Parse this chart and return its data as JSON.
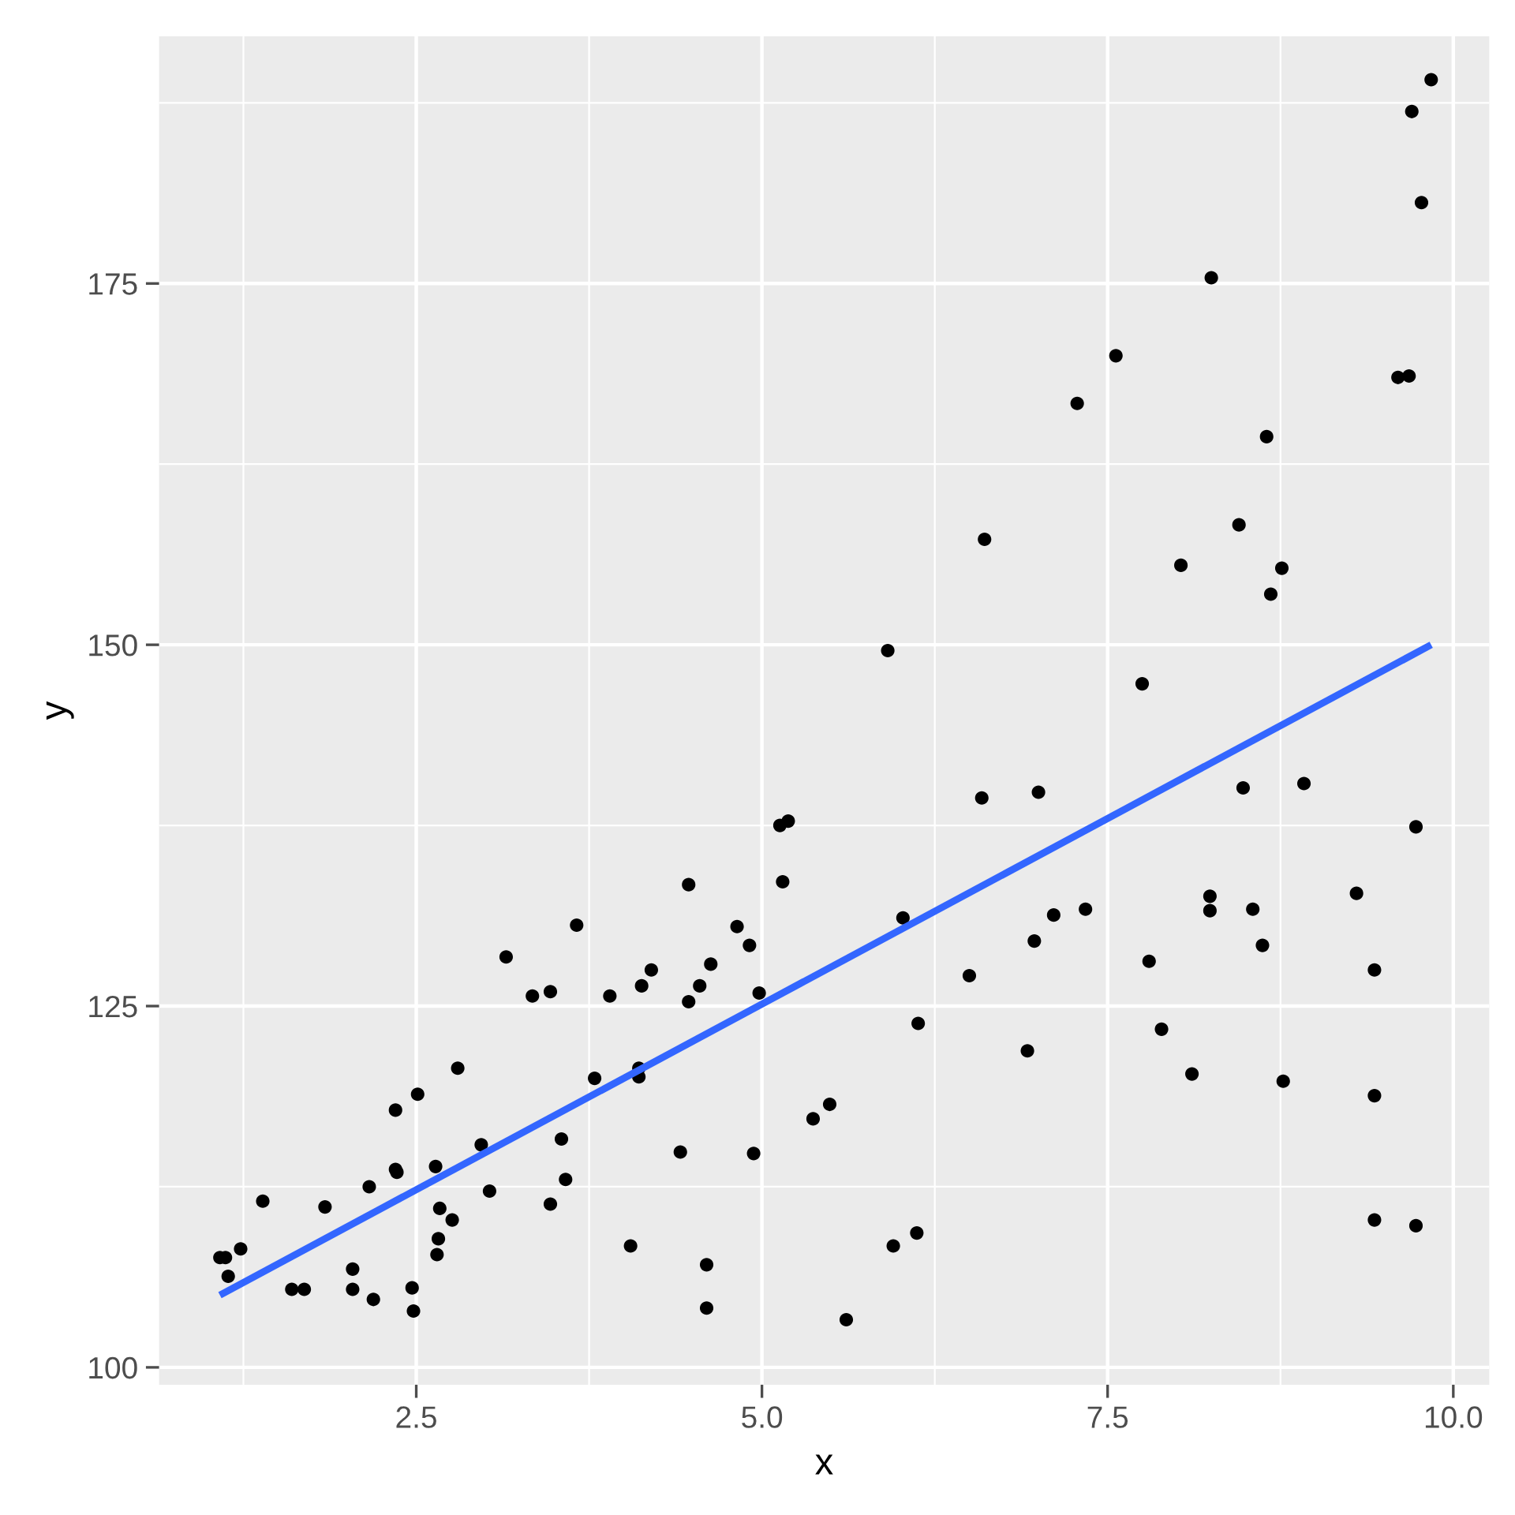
{
  "chart_data": {
    "type": "scatter",
    "xlabel": "x",
    "ylabel": "y",
    "xlim": [
      0.64,
      10.26
    ],
    "ylim": [
      98.8,
      192.1
    ],
    "xticks": [
      2.5,
      {
        "value": 5,
        "label": "5.0"
      },
      7.5,
      {
        "value": 10,
        "label": "10.0"
      }
    ],
    "yticks": [
      100,
      125,
      150,
      175
    ],
    "grid": true,
    "marker": "circle",
    "series": [
      {
        "color": "#000000",
        "x": [
          1.08,
          1.12,
          1.14,
          1.23,
          1.39,
          1.6,
          1.69,
          1.84,
          2.04,
          2.04,
          2.16,
          2.19,
          2.35,
          2.35,
          2.36,
          2.47,
          2.48,
          2.51,
          2.64,
          2.65,
          2.66,
          2.67,
          2.76,
          2.8,
          2.97,
          3.03,
          3.15,
          3.34,
          3.47,
          3.47,
          3.55,
          3.58,
          3.66,
          3.79,
          3.9,
          4.05,
          4.11,
          4.11,
          4.13,
          4.2,
          4.41,
          4.47,
          4.47,
          4.55,
          4.6,
          4.6,
          4.63,
          4.82,
          4.91,
          4.94,
          4.98,
          5.13,
          5.19,
          5.15,
          5.37,
          5.49,
          5.61,
          5.91,
          5.95,
          6.02,
          6.12,
          6.13,
          6.5,
          6.59,
          6.61,
          6.92,
          6.97,
          7.0,
          7.11,
          7.28,
          7.34,
          7.56,
          7.75,
          7.8,
          7.89,
          8.03,
          8.11,
          8.24,
          8.24,
          8.25,
          8.45,
          8.48,
          8.55,
          8.62,
          8.65,
          8.68,
          8.76,
          8.77,
          8.92,
          9.3,
          9.43,
          9.43,
          9.43,
          9.6,
          9.68,
          9.7,
          9.73,
          9.73,
          9.77,
          9.84
        ],
        "values": [
          107.6,
          107.6,
          106.3,
          108.2,
          111.5,
          105.4,
          105.4,
          111.1,
          106.8,
          105.4,
          112.5,
          104.7,
          117.8,
          113.7,
          113.5,
          105.5,
          103.9,
          118.9,
          113.9,
          107.8,
          108.9,
          111.0,
          110.2,
          120.7,
          115.4,
          112.2,
          128.4,
          125.7,
          126.0,
          111.3,
          115.8,
          113.0,
          130.6,
          120.0,
          125.7,
          108.4,
          120.7,
          120.1,
          126.4,
          127.5,
          114.9,
          133.4,
          125.3,
          126.4,
          104.1,
          107.1,
          127.9,
          130.5,
          129.2,
          114.8,
          125.9,
          137.5,
          137.8,
          133.6,
          117.2,
          118.2,
          103.3,
          149.6,
          108.4,
          131.1,
          109.3,
          123.8,
          127.1,
          139.4,
          157.3,
          121.9,
          129.5,
          139.8,
          131.3,
          166.7,
          131.7,
          170.0,
          147.3,
          128.1,
          123.4,
          155.5,
          120.3,
          132.6,
          131.6,
          175.4,
          158.3,
          140.1,
          131.7,
          129.2,
          164.4,
          153.5,
          155.3,
          119.8,
          140.4,
          132.8,
          127.5,
          118.8,
          110.2,
          168.5,
          168.6,
          186.9,
          137.4,
          109.8,
          180.6,
          189.1
        ]
      },
      {
        "type": "line",
        "color": "#3366ff",
        "x": [
          1.08,
          9.84
        ],
        "values": [
          105.0,
          150.0
        ],
        "marker": "none"
      }
    ]
  }
}
